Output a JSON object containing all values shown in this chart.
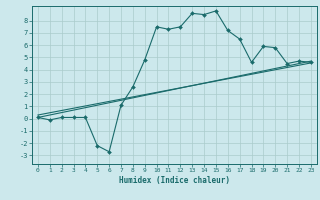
{
  "xlabel": "Humidex (Indice chaleur)",
  "bg_color": "#cce8ec",
  "grid_color": "#aacccc",
  "line_color": "#1a6b6b",
  "xlim": [
    -0.5,
    23.5
  ],
  "ylim": [
    -3.7,
    9.2
  ],
  "xticks": [
    0,
    1,
    2,
    3,
    4,
    5,
    6,
    7,
    8,
    9,
    10,
    11,
    12,
    13,
    14,
    15,
    16,
    17,
    18,
    19,
    20,
    21,
    22,
    23
  ],
  "yticks": [
    -3,
    -2,
    -1,
    0,
    1,
    2,
    3,
    4,
    5,
    6,
    7,
    8
  ],
  "curve_x": [
    0,
    1,
    2,
    3,
    4,
    5,
    6,
    7,
    8,
    9,
    10,
    11,
    12,
    13,
    14,
    15,
    16,
    17,
    18,
    19,
    20,
    21,
    22,
    23
  ],
  "curve_y": [
    0.1,
    -0.1,
    0.1,
    0.1,
    0.1,
    -2.2,
    -2.7,
    1.1,
    2.6,
    4.8,
    7.5,
    7.3,
    7.5,
    8.6,
    8.5,
    8.8,
    7.2,
    6.5,
    4.6,
    5.9,
    5.8,
    4.5,
    4.7,
    4.6
  ],
  "reg_line1": [
    [
      0,
      23
    ],
    [
      0.1,
      4.7
    ]
  ],
  "reg_line2": [
    [
      0,
      23
    ],
    [
      0.3,
      4.55
    ]
  ]
}
